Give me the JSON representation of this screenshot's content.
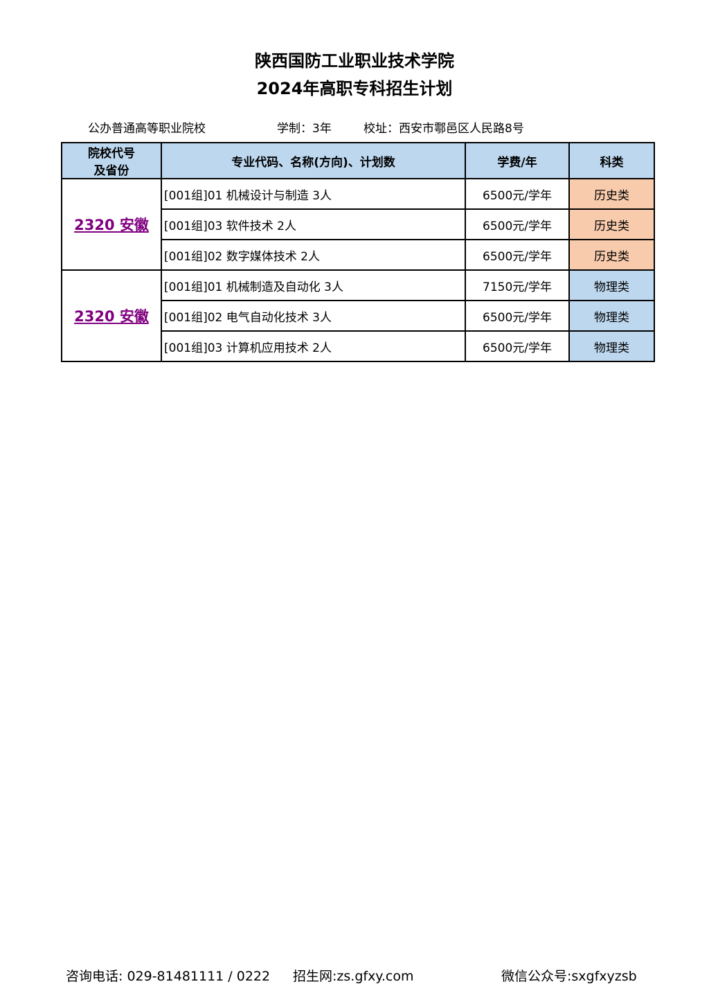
{
  "header": {
    "title_line1": "陕西国防工业职业技术学院",
    "title_line2": "2024年高职专科招生计划",
    "school_type": "公办普通高等职业院校",
    "duration": "学制：3年",
    "address": "校址：西安市鄠邑区人民路8号"
  },
  "table": {
    "columns": [
      "院校代号及省份",
      "专业代码、名称(方向)、计划数",
      "学费/年",
      "科类"
    ],
    "column0_line1": "院校代号",
    "column0_line2": "及省份",
    "groups": [
      {
        "code": "2320 安徽",
        "rows": [
          {
            "major": "[001组]01 机械设计与制造 3人",
            "fee": "6500元/学年",
            "category": "历史类"
          },
          {
            "major": "[001组]03 软件技术 2人",
            "fee": "6500元/学年",
            "category": "历史类"
          },
          {
            "major": "[001组]02 数字媒体技术 2人",
            "fee": "6500元/学年",
            "category": "历史类"
          }
        ]
      },
      {
        "code": "2320 安徽",
        "rows": [
          {
            "major": "[001组]01 机械制造及自动化 3人",
            "fee": "7150元/学年",
            "category": "物理类"
          },
          {
            "major": "[001组]02 电气自动化技术 3人",
            "fee": "6500元/学年",
            "category": "物理类"
          },
          {
            "major": "[001组]03 计算机应用技术 2人",
            "fee": "6500元/学年",
            "category": "物理类"
          }
        ]
      }
    ]
  },
  "colors": {
    "header_bg": "#bdd7ee",
    "history_bg": "#f8cbad",
    "physics_bg": "#bdd7ee",
    "link": "#800080"
  },
  "footer": {
    "phone": "咨询电话: 029-81481111 / 0222",
    "website": "招生网:zs.gfxy.com",
    "wechat": "微信公众号:sxgfxyzsb"
  }
}
